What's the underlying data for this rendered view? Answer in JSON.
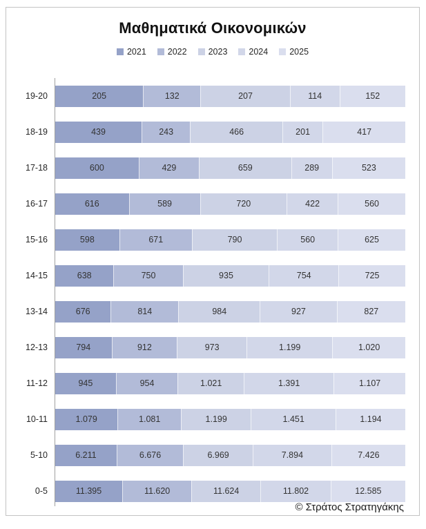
{
  "page": {
    "footer_copyright": "© Στράτος Στρατηγάκης"
  },
  "chart_data": {
    "type": "bar",
    "subtype": "horizontal-100-percent-stacked",
    "title": "Μαθηματικά Οικονομικών",
    "legend_position": "top",
    "grid": false,
    "value_axis_visible": false,
    "axis_line_color": "#a0a0a0",
    "categories": [
      "19-20",
      "18-19",
      "17-18",
      "16-17",
      "15-16",
      "14-15",
      "13-14",
      "12-13",
      "11-12",
      "10-11",
      "5-10",
      "0-5"
    ],
    "series": [
      {
        "name": "2021",
        "color": "#95a2c8",
        "values": [
          205,
          439,
          600,
          616,
          598,
          638,
          676,
          794,
          945,
          1079,
          6211,
          11395
        ],
        "labels": [
          "205",
          "439",
          "600",
          "616",
          "598",
          "638",
          "676",
          "794",
          "945",
          "1.079",
          "6.211",
          "11.395"
        ]
      },
      {
        "name": "2022",
        "color": "#b2bbd8",
        "values": [
          132,
          243,
          429,
          589,
          671,
          750,
          814,
          912,
          954,
          1081,
          6676,
          11620
        ],
        "labels": [
          "132",
          "243",
          "429",
          "589",
          "671",
          "750",
          "814",
          "912",
          "954",
          "1.081",
          "6.676",
          "11.620"
        ]
      },
      {
        "name": "2023",
        "color": "#ccd2e5",
        "values": [
          207,
          466,
          659,
          720,
          790,
          935,
          984,
          973,
          1021,
          1199,
          6969,
          11624
        ],
        "labels": [
          "207",
          "466",
          "659",
          "720",
          "790",
          "935",
          "984",
          "973",
          "1.021",
          "1.199",
          "6.969",
          "11.624"
        ]
      },
      {
        "name": "2024",
        "color": "#d2d7e9",
        "values": [
          114,
          201,
          289,
          422,
          560,
          754,
          927,
          1199,
          1391,
          1451,
          7894,
          11802
        ],
        "labels": [
          "114",
          "201",
          "289",
          "422",
          "560",
          "754",
          "927",
          "1.199",
          "1.391",
          "1.451",
          "7.894",
          "11.802"
        ]
      },
      {
        "name": "2025",
        "color": "#dadeee",
        "values": [
          152,
          417,
          523,
          560,
          625,
          725,
          827,
          1020,
          1107,
          1194,
          7426,
          12585
        ],
        "labels": [
          "152",
          "417",
          "523",
          "560",
          "625",
          "725",
          "827",
          "1.020",
          "1.107",
          "1.194",
          "7.426",
          "12.585"
        ]
      }
    ]
  }
}
